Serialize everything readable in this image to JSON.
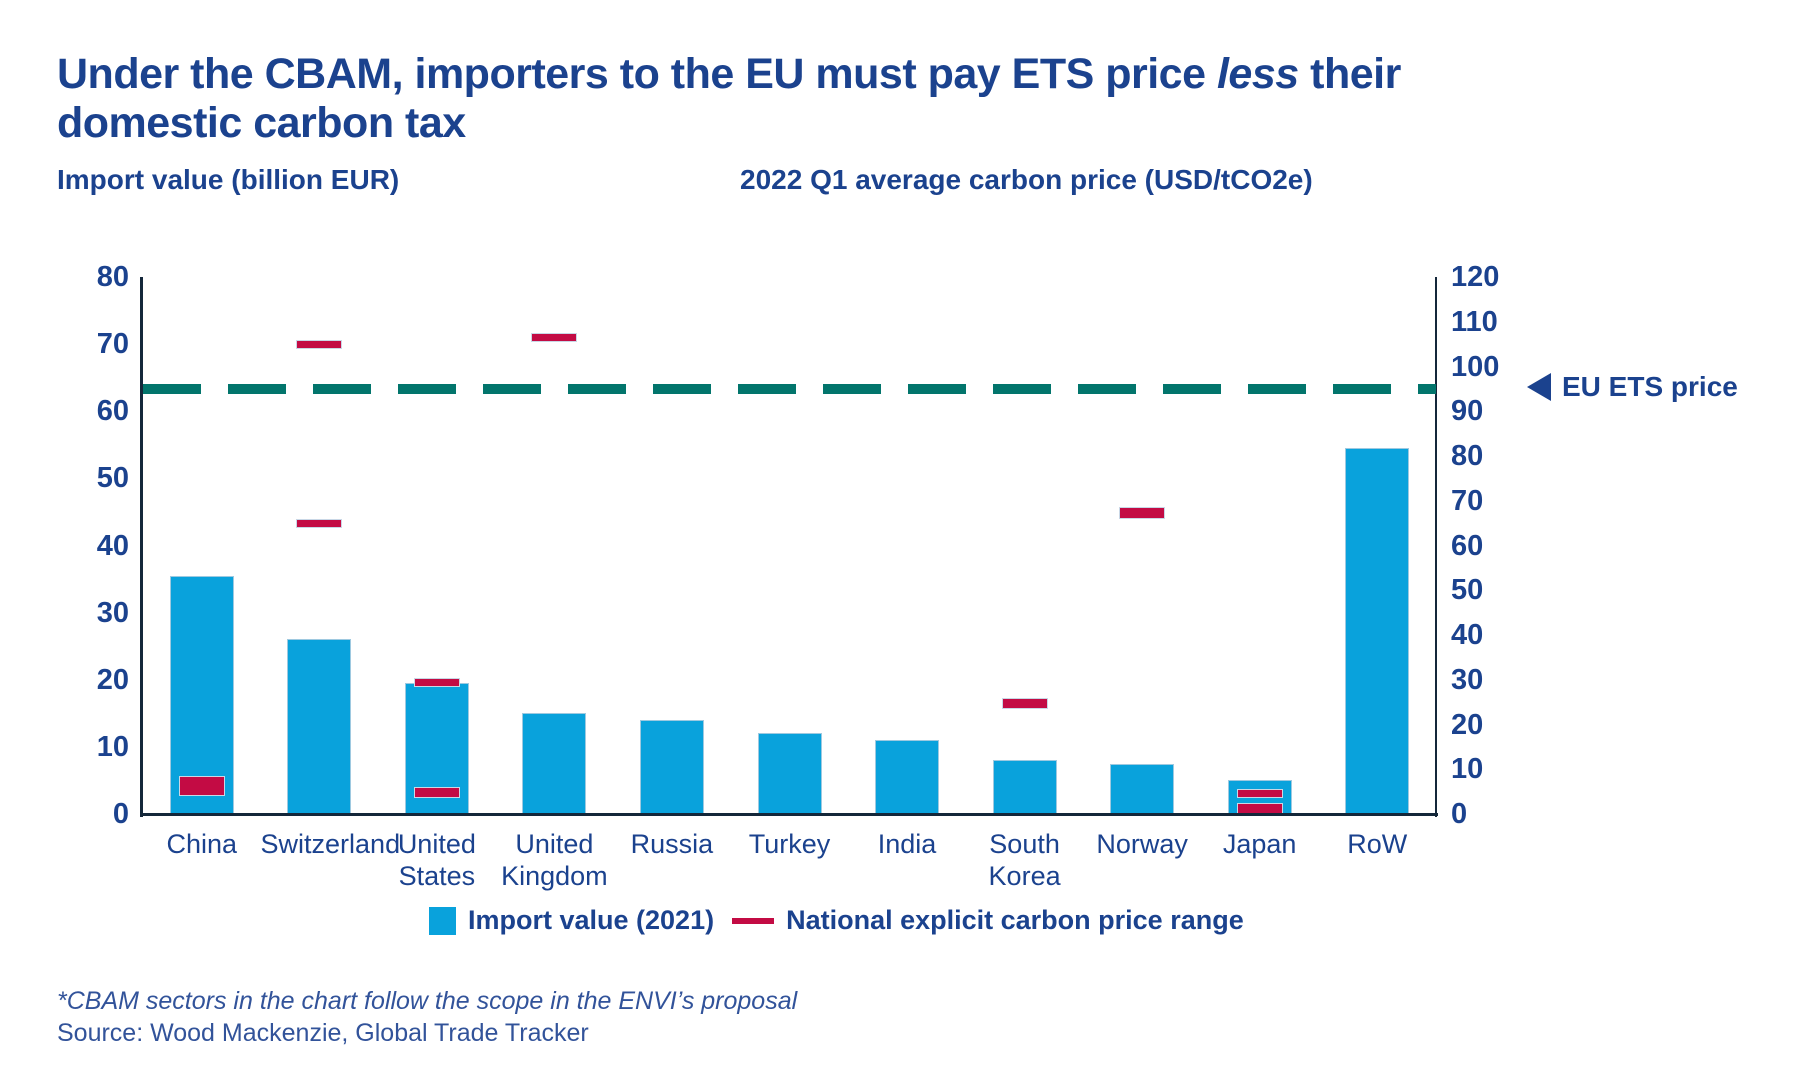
{
  "title": {
    "pre": "Under the CBAM, importers to the EU must pay ETS price ",
    "emphasis": "less",
    "post": " their domestic carbon tax"
  },
  "axis_titles": {
    "left": "Import value (billion EUR)",
    "right": "2022 Q1 average carbon price (USD/tCO2e)"
  },
  "chart_data": {
    "type": "bar",
    "categories": [
      "China",
      "Switzerland",
      "United States",
      "United Kingdom",
      "Russia",
      "Turkey",
      "India",
      "South Korea",
      "Norway",
      "Japan",
      "RoW"
    ],
    "series": [
      {
        "name": "Import value (2021)",
        "type": "bar",
        "axis": "left",
        "color": "#09a2dc",
        "values": [
          35.5,
          26,
          19.5,
          15,
          14,
          12,
          11,
          8,
          7.5,
          5,
          54.5
        ]
      },
      {
        "name": "National explicit carbon price range",
        "type": "range-dash",
        "axis": "right",
        "color": "#c30b44",
        "marks": [
          [
            [
              4,
              8.5
            ]
          ],
          [
            [
              64,
              66
            ],
            [
              104,
              106
            ]
          ],
          [
            [
              28.5,
              30.5
            ],
            [
              3.5,
              6
            ]
          ],
          [
            [
              105.5,
              107.5
            ]
          ],
          [],
          [],
          [],
          [
            [
              23.5,
              26
            ]
          ],
          [
            [
              66,
              68.5
            ]
          ],
          [
            [
              3.5,
              5.5
            ],
            [
              0,
              2.5
            ]
          ],
          []
        ]
      }
    ],
    "reference_line": {
      "label": "EU ETS price",
      "value": 95,
      "axis": "right",
      "style": "dashed",
      "color": "#02756c"
    },
    "left_axis": {
      "range": [
        0,
        80
      ],
      "ticks": [
        80,
        70,
        60,
        50,
        40,
        30,
        20,
        10,
        0
      ]
    },
    "right_axis": {
      "range": [
        0,
        120
      ],
      "ticks": [
        120,
        110,
        100,
        90,
        80,
        70,
        60,
        50,
        40,
        30,
        20,
        10,
        0
      ]
    },
    "grid": false,
    "legend_position": "bottom"
  },
  "legend": {
    "items": [
      {
        "label": "Import value (2021)",
        "swatch": "square",
        "color": "#09a2dc"
      },
      {
        "label": "National explicit carbon price range",
        "swatch": "line",
        "color": "#c30b44"
      }
    ]
  },
  "footnotes": {
    "note": "*CBAM sectors in the chart follow the scope in the ENVI’s proposal",
    "source": "Source: Wood Mackenzie, Global Trade Tracker"
  },
  "colors": {
    "title_text": "#1b428e",
    "axis_text": "#1b428e",
    "bar": "#09a2dc",
    "price_range": "#c30b44",
    "ets_line": "#02756c",
    "axis_line": "#14273a"
  }
}
